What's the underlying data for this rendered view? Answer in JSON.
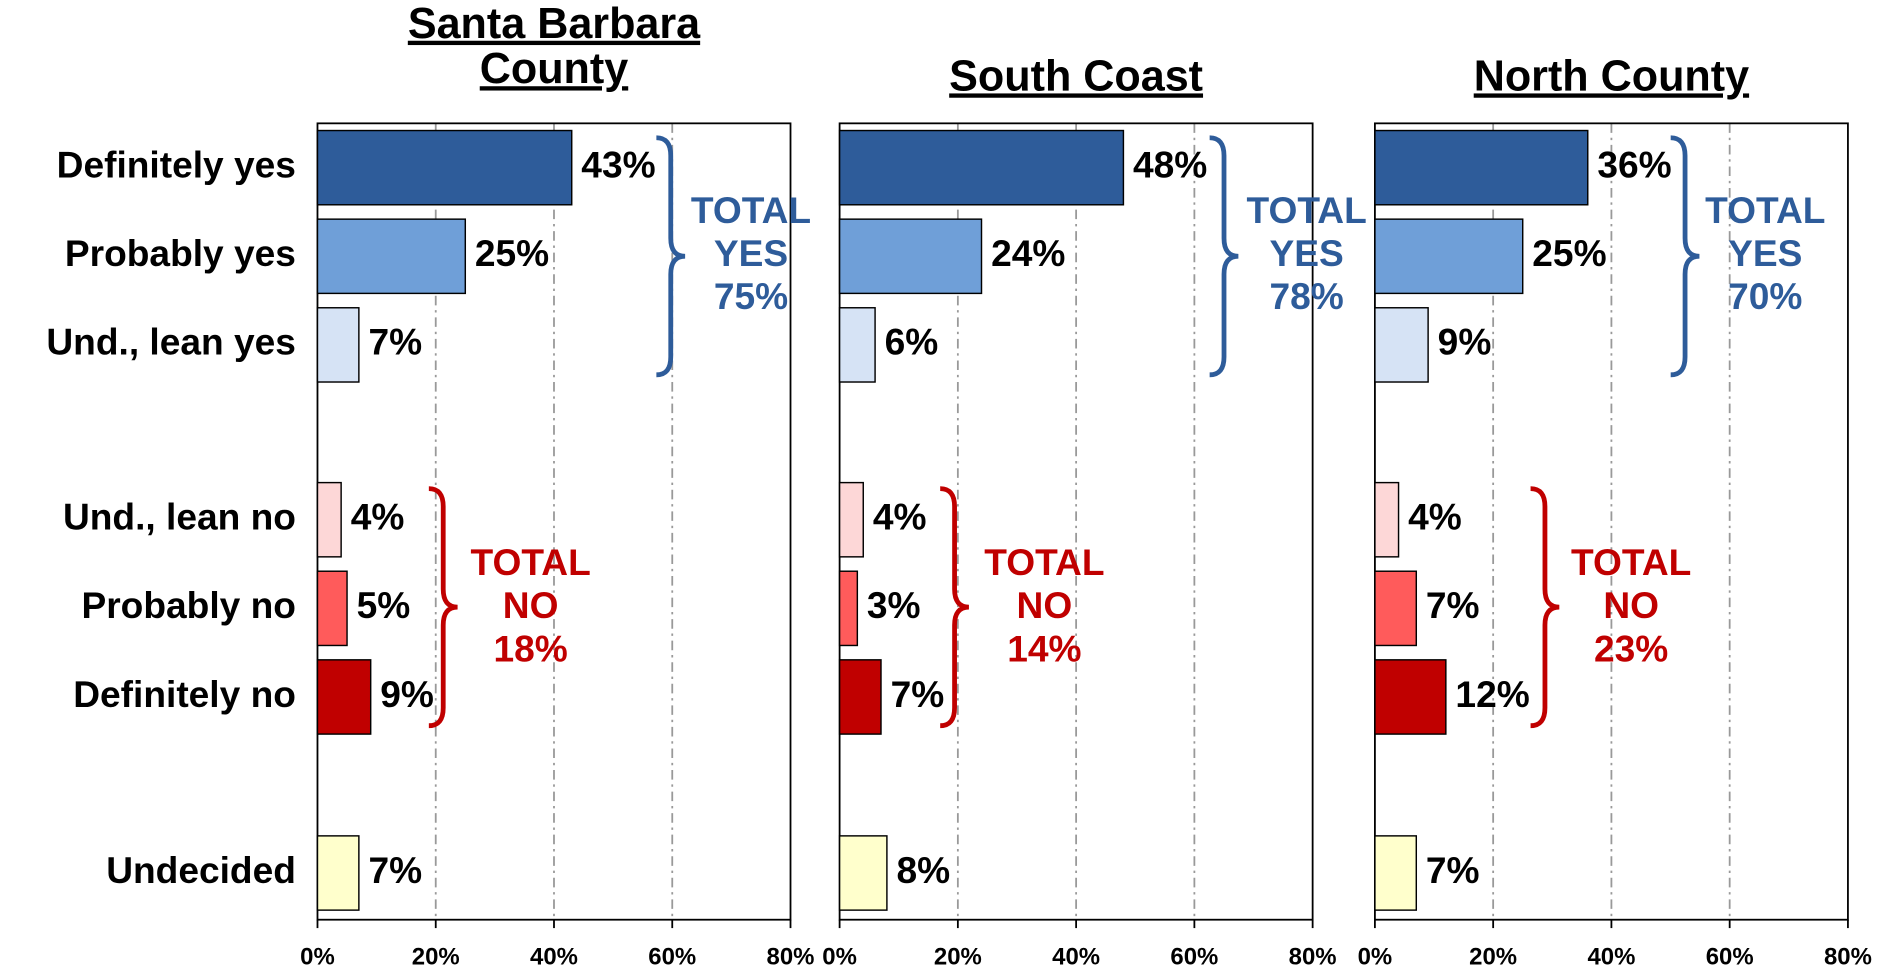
{
  "chart_data": [
    {
      "type": "bar",
      "title_lines": [
        "Santa Barbara",
        "County"
      ],
      "categories": [
        "Definitely yes",
        "Probably yes",
        "Und., lean yes",
        "Und., lean no",
        "Probably no",
        "Definitely no",
        "Undecided"
      ],
      "values": [
        43,
        25,
        7,
        4,
        5,
        9,
        7
      ],
      "value_labels": [
        "43%",
        "25%",
        "7%",
        "4%",
        "5%",
        "9%",
        "7%"
      ],
      "colors": [
        "#2e5c9a",
        "#6f9fd8",
        "#d6e3f5",
        "#fdd7d7",
        "#ff5b5b",
        "#c00000",
        "#ffffcc"
      ],
      "xlim": [
        0,
        80
      ],
      "xticks": [
        {
          "value": 0,
          "label": "0%"
        },
        {
          "value": 20,
          "label": "20%"
        },
        {
          "value": 40,
          "label": "40%"
        },
        {
          "value": 60,
          "label": "60%"
        },
        {
          "value": 80,
          "label": "80%"
        }
      ],
      "annotations": [
        {
          "lines": [
            "TOTAL",
            "YES",
            "75%"
          ],
          "color": "#2e5c9a"
        },
        {
          "lines": [
            "TOTAL",
            "NO",
            "18%"
          ],
          "color": "#c00000"
        }
      ]
    },
    {
      "type": "bar",
      "title_lines": [
        "South Coast"
      ],
      "values": [
        48,
        24,
        6,
        4,
        3,
        7,
        8
      ],
      "value_labels": [
        "48%",
        "24%",
        "6%",
        "4%",
        "3%",
        "7%",
        "8%"
      ],
      "colors": [
        "#2e5c9a",
        "#6f9fd8",
        "#d6e3f5",
        "#fdd7d7",
        "#ff5b5b",
        "#c00000",
        "#ffffcc"
      ],
      "xlim": [
        0,
        80
      ],
      "xticks": [
        {
          "value": 0,
          "label": "0%"
        },
        {
          "value": 20,
          "label": "20%"
        },
        {
          "value": 40,
          "label": "40%"
        },
        {
          "value": 60,
          "label": "60%"
        },
        {
          "value": 80,
          "label": "80%"
        }
      ],
      "annotations": [
        {
          "lines": [
            "TOTAL",
            "YES",
            "78%"
          ],
          "color": "#2e5c9a"
        },
        {
          "lines": [
            "TOTAL",
            "NO",
            "14%"
          ],
          "color": "#c00000"
        }
      ]
    },
    {
      "type": "bar",
      "title_lines": [
        "North County"
      ],
      "values": [
        36,
        25,
        9,
        4,
        7,
        12,
        7
      ],
      "value_labels": [
        "36%",
        "25%",
        "9%",
        "4%",
        "7%",
        "12%",
        "7%"
      ],
      "colors": [
        "#2e5c9a",
        "#6f9fd8",
        "#d6e3f5",
        "#fdd7d7",
        "#ff5b5b",
        "#c00000",
        "#ffffcc"
      ],
      "xlim": [
        0,
        80
      ],
      "xticks": [
        {
          "value": 0,
          "label": "0%"
        },
        {
          "value": 20,
          "label": "20%"
        },
        {
          "value": 40,
          "label": "40%"
        },
        {
          "value": 60,
          "label": "60%"
        },
        {
          "value": 80,
          "label": "80%"
        }
      ],
      "annotations": [
        {
          "lines": [
            "TOTAL",
            "YES",
            "70%"
          ],
          "color": "#2e5c9a"
        },
        {
          "lines": [
            "TOTAL",
            "NO",
            "23%"
          ],
          "color": "#c00000"
        }
      ]
    }
  ]
}
